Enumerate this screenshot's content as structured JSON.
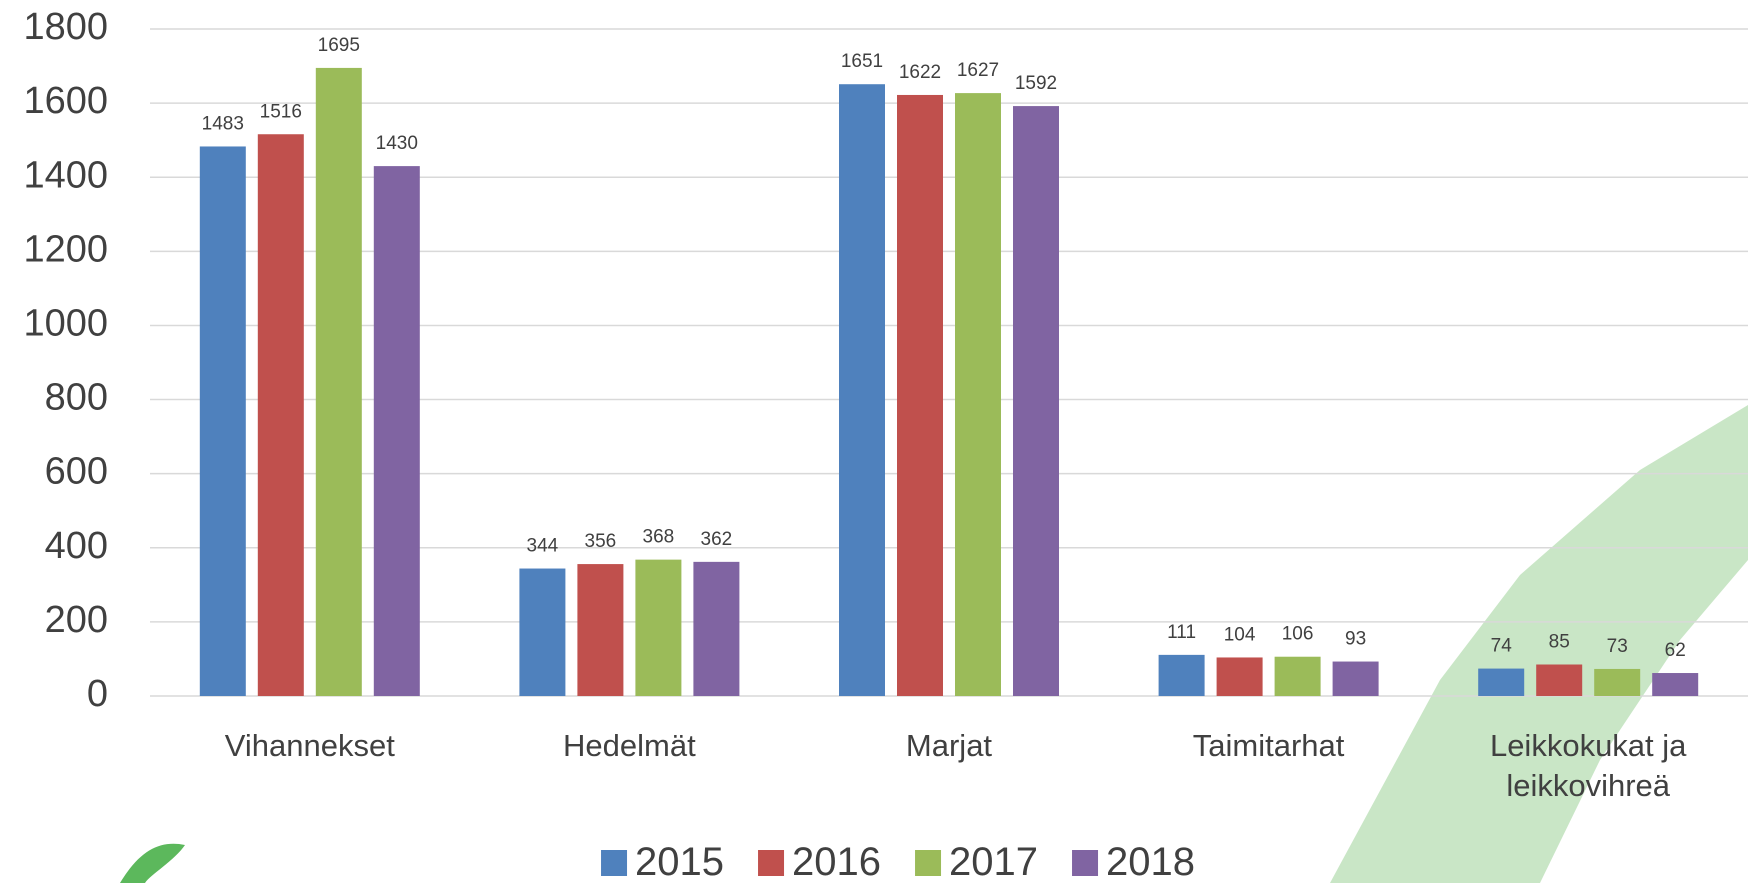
{
  "chart_data": {
    "type": "bar",
    "categories": [
      "Vihannekset",
      "Hedelmät",
      "Marjat",
      "Taimitarhat",
      "Leikkokukat ja leikkovihreä"
    ],
    "series": [
      {
        "name": "2015",
        "color": "#4f81bd",
        "values": [
          1483,
          344,
          1651,
          111,
          74
        ]
      },
      {
        "name": "2016",
        "color": "#c0504d",
        "values": [
          1516,
          356,
          1622,
          104,
          85
        ]
      },
      {
        "name": "2017",
        "color": "#9bbb59",
        "values": [
          1695,
          368,
          1627,
          106,
          73
        ]
      },
      {
        "name": "2018",
        "color": "#8064a2",
        "values": [
          1430,
          362,
          1592,
          93,
          62
        ]
      }
    ],
    "ylim": [
      0,
      1800
    ],
    "yticks": [
      0,
      200,
      400,
      600,
      800,
      1000,
      1200,
      1400,
      1600,
      1800
    ],
    "grid": true,
    "legend": "bottom"
  }
}
